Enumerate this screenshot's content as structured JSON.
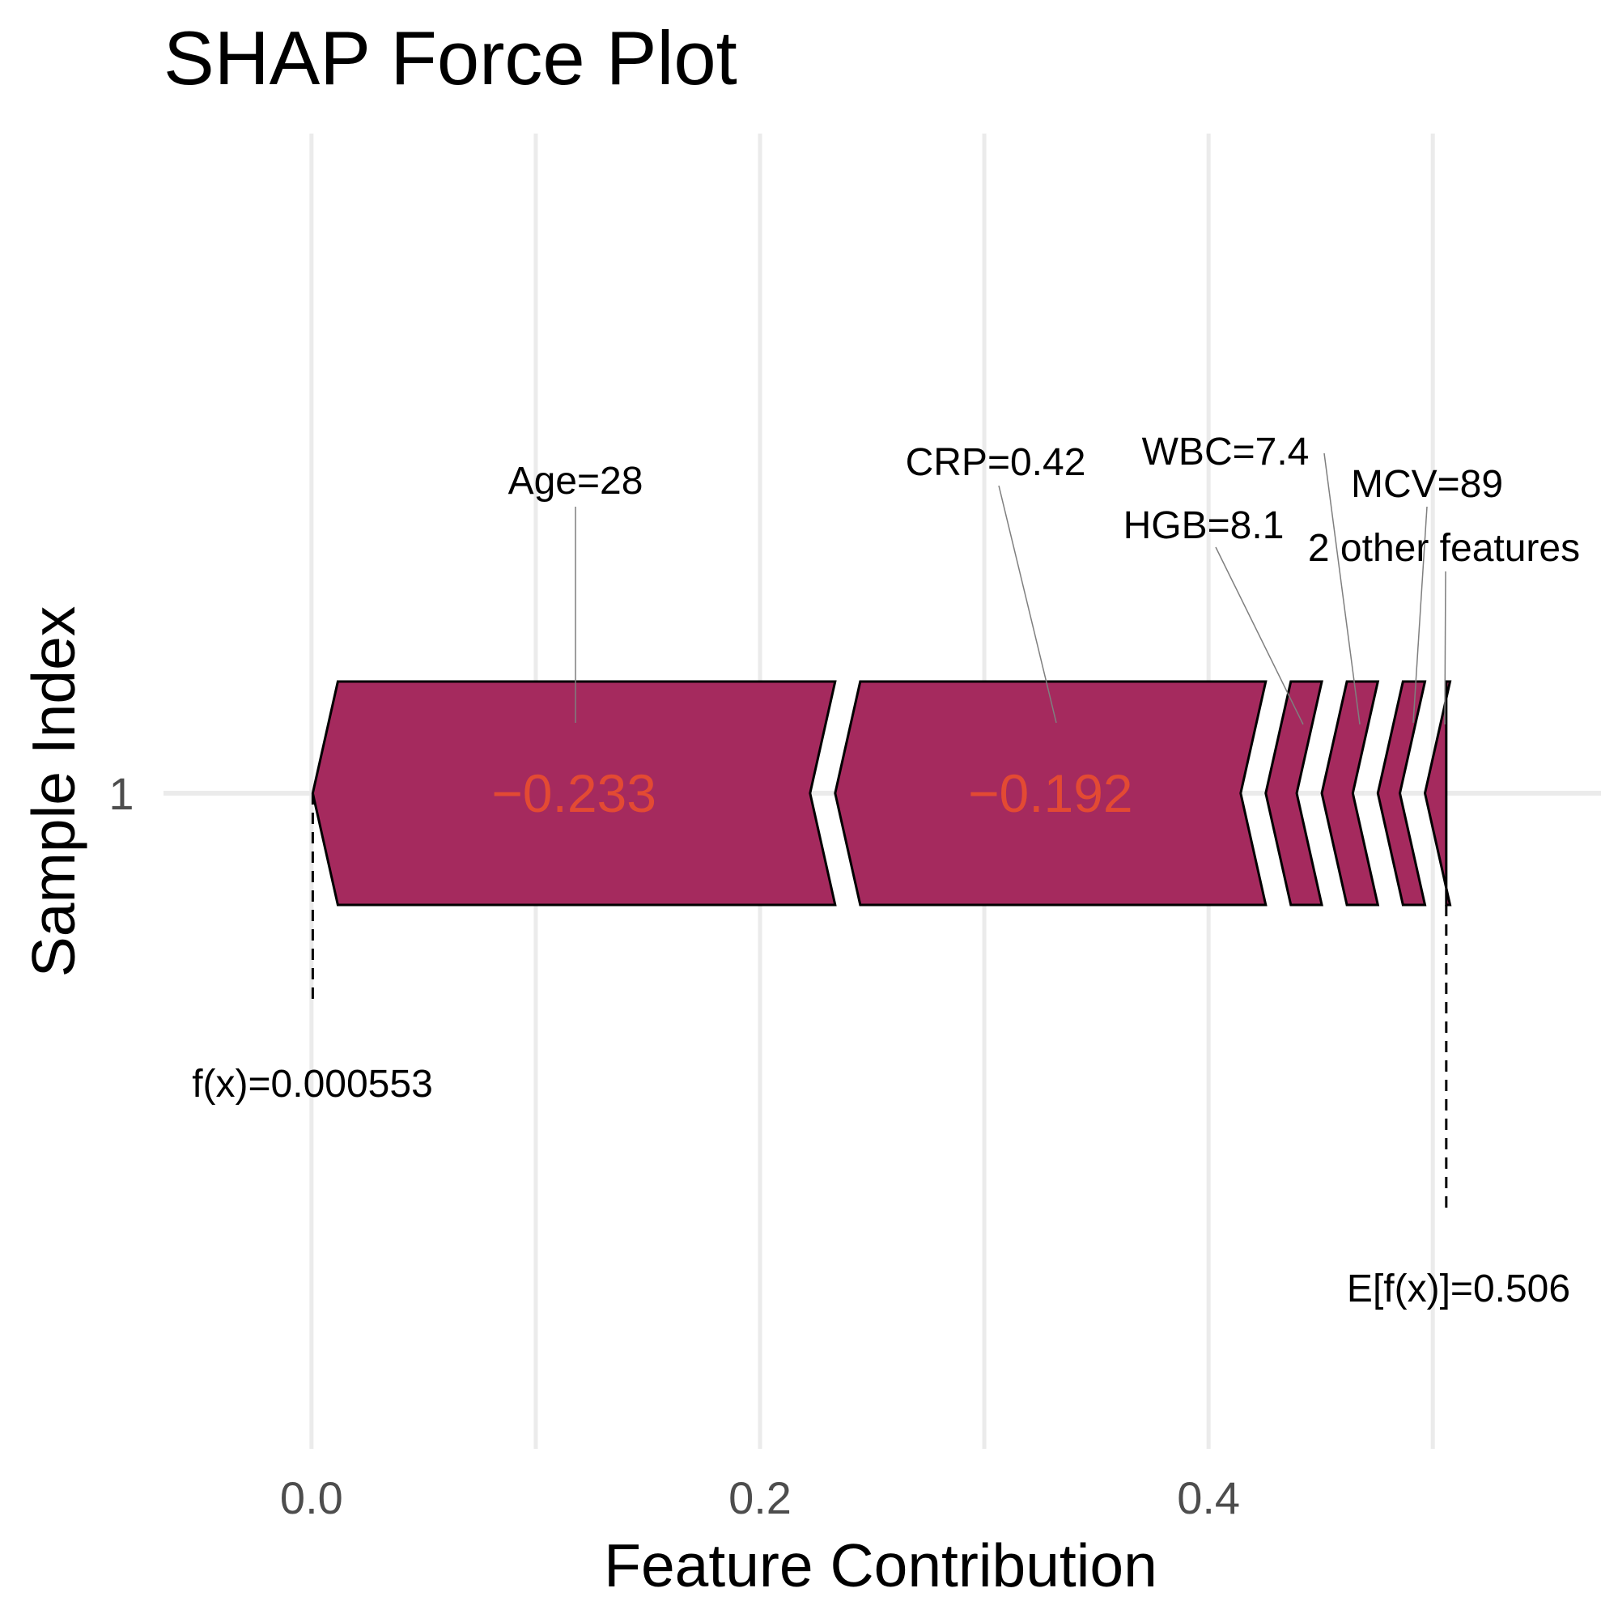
{
  "chart_data": {
    "type": "bar",
    "title": "SHAP Force Plot",
    "xlabel": "Feature Contribution",
    "ylabel": "Sample Index",
    "xlim": [
      -0.066,
      0.575
    ],
    "x_ticks": [
      0.0,
      0.2,
      0.4
    ],
    "x_tick_labels": [
      "0.0",
      "0.2",
      "0.4"
    ],
    "y_ticks": [
      "1"
    ],
    "grid": true,
    "bar_color": "#A52A5E",
    "value_label_color": "#E34A33",
    "base_value": 0.506,
    "prediction": 0.000553,
    "endpoints": {
      "prediction_label": "f(x)=0.000553",
      "base_label": "E[f(x)]=0.506"
    },
    "series": [
      {
        "label": "Age=28",
        "value": -0.233,
        "value_label": "−0.233",
        "start": 0.000553,
        "end": 0.2335
      },
      {
        "label": "CRP=0.42",
        "value": -0.192,
        "value_label": "−0.192",
        "start": 0.2335,
        "end": 0.4255
      },
      {
        "label": "HGB=8.1",
        "value": -0.025,
        "value_label": "",
        "start": 0.4255,
        "end": 0.4505
      },
      {
        "label": "WBC=7.4",
        "value": -0.025,
        "value_label": "",
        "start": 0.4505,
        "end": 0.4755
      },
      {
        "label": "MCV=89",
        "value": -0.021,
        "value_label": "",
        "start": 0.4755,
        "end": 0.4965
      },
      {
        "label": "2 other features",
        "value": -0.0095,
        "value_label": "",
        "start": 0.4965,
        "end": 0.506
      }
    ]
  }
}
